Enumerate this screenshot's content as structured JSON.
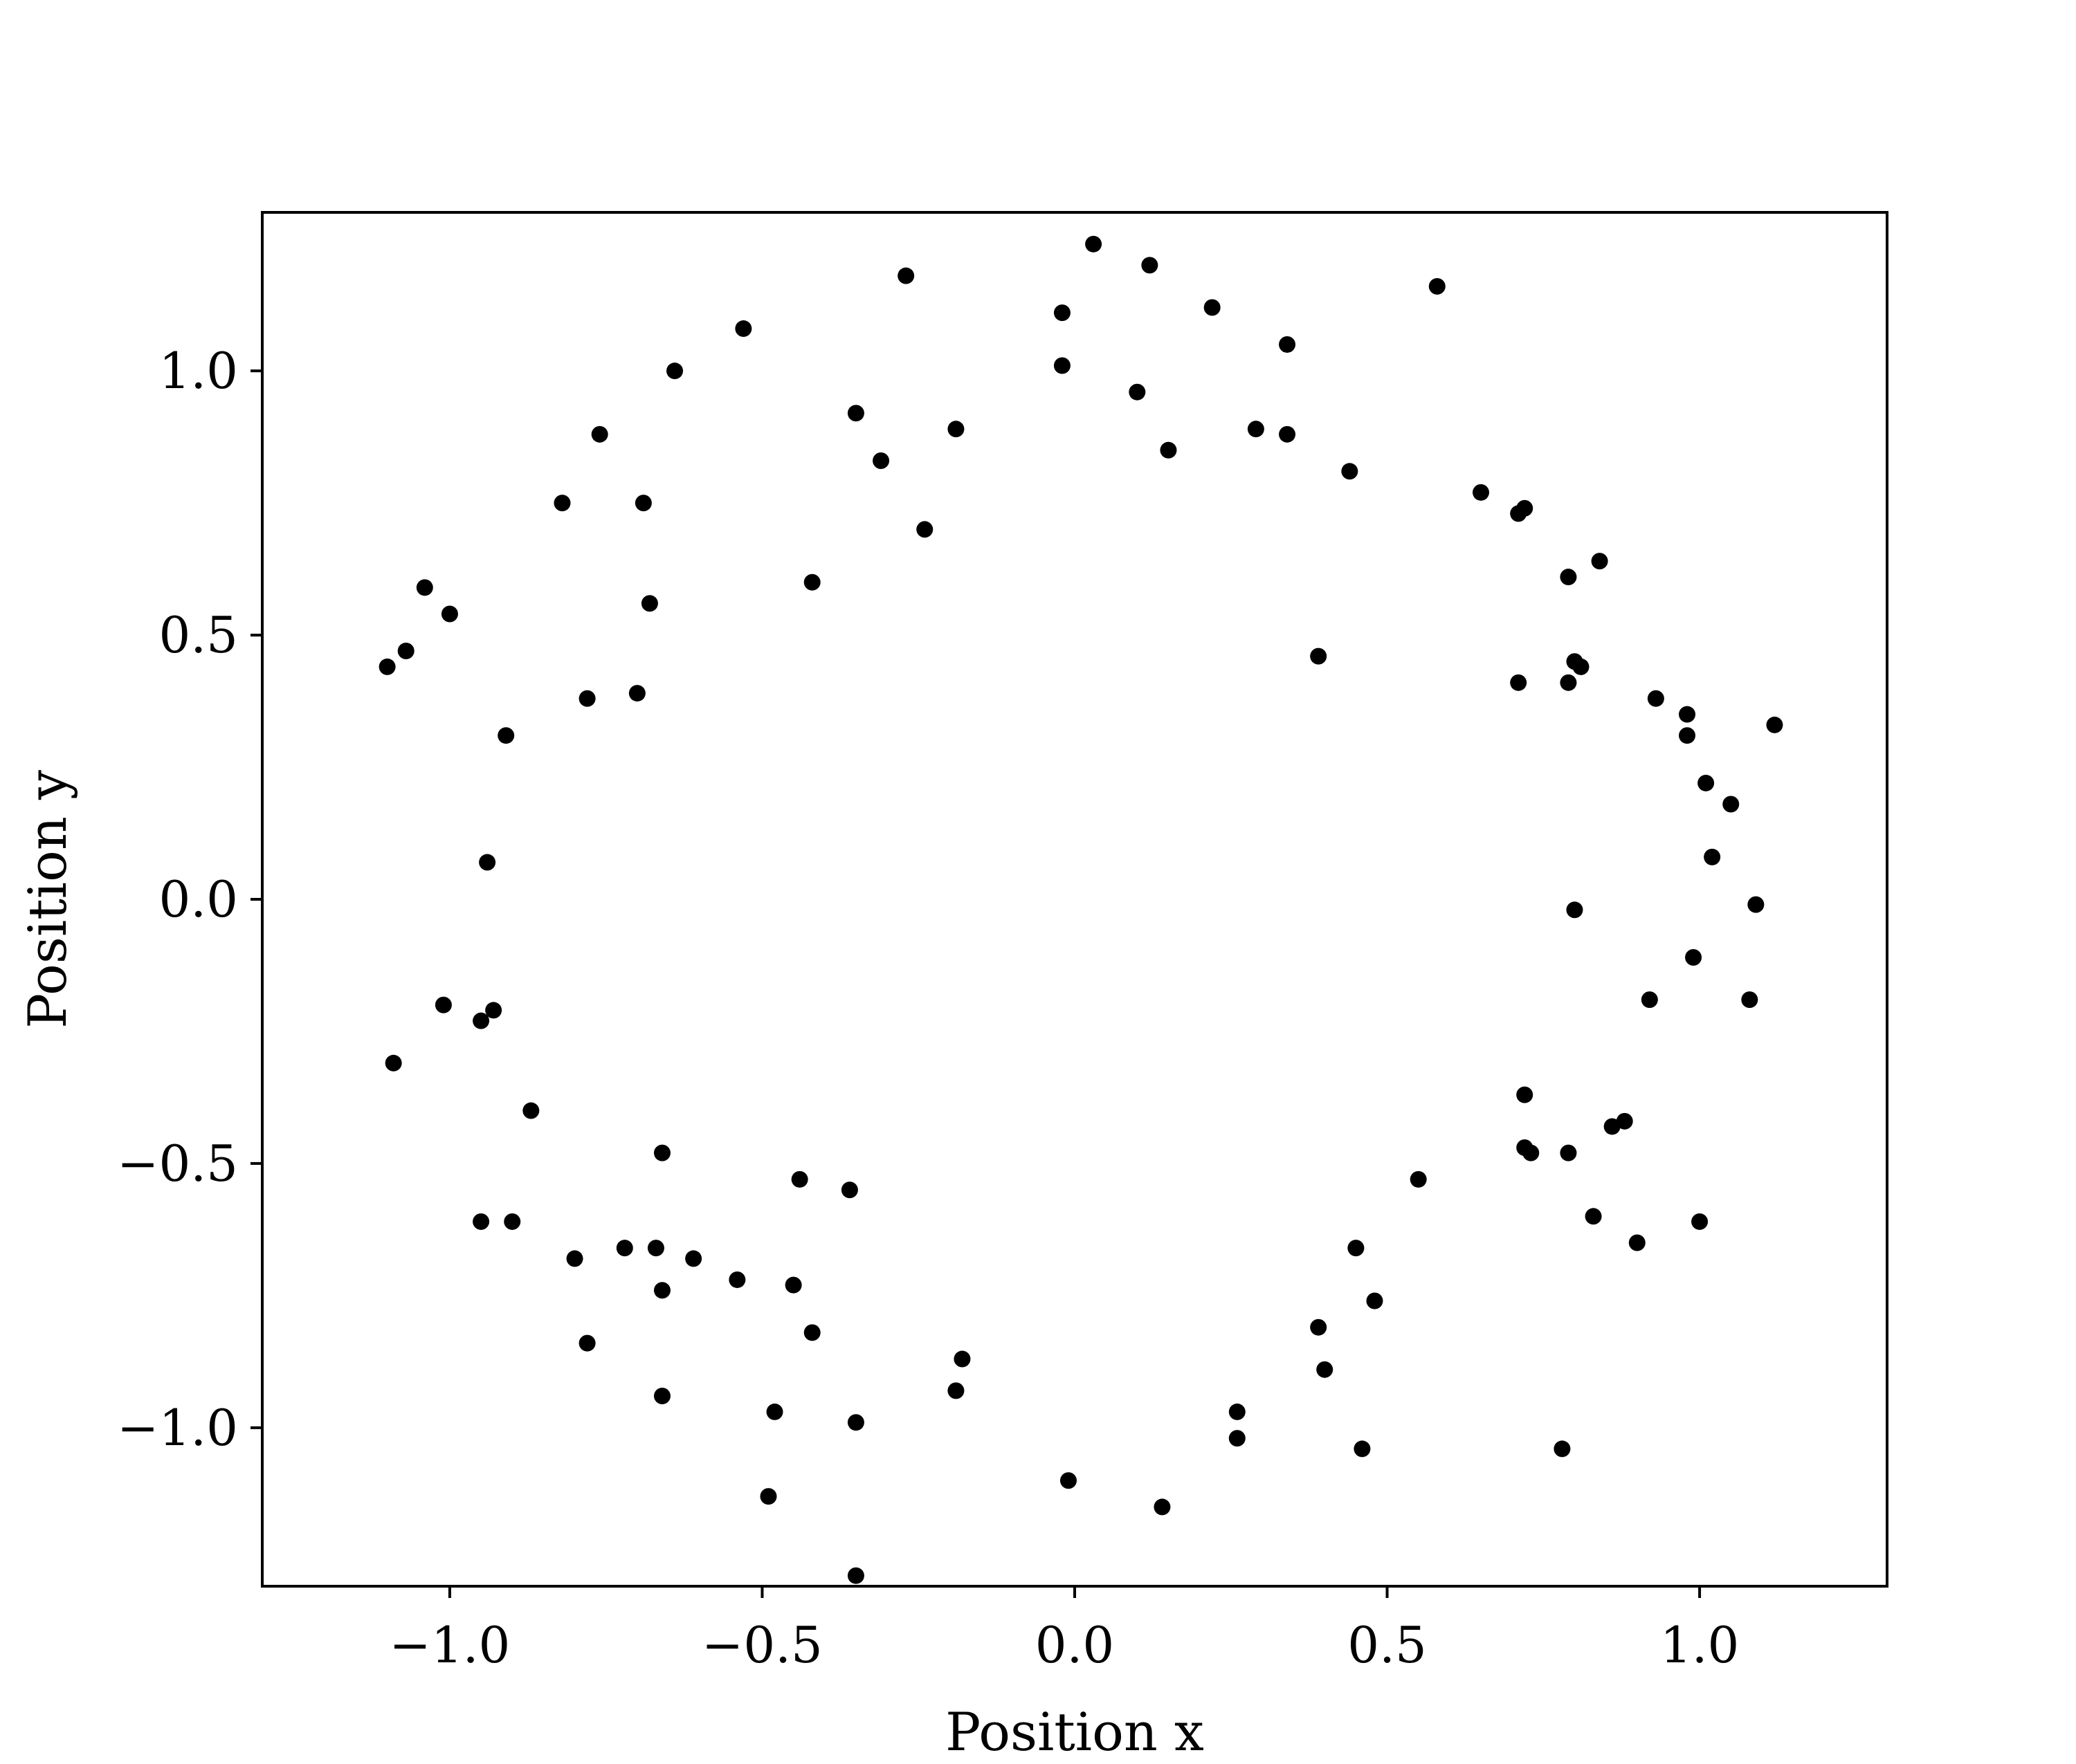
{
  "chart_data": {
    "type": "scatter",
    "title": "",
    "xlabel": "Position x",
    "ylabel": "Position y",
    "xlim": [
      -1.3,
      1.3
    ],
    "ylim": [
      -1.3,
      1.3
    ],
    "grid": false,
    "marker_color": "#000000",
    "xticks": [
      -1.0,
      -0.5,
      0.0,
      0.5,
      1.0
    ],
    "xtick_labels": [
      "−1.0",
      "−0.5",
      "0.0",
      "0.5",
      "1.0"
    ],
    "yticks": [
      -1.0,
      -0.5,
      0.0,
      0.5,
      1.0
    ],
    "ytick_labels": [
      "−1.0",
      "−0.5",
      "0.0",
      "0.5",
      "1.0"
    ],
    "points": [
      [
        0.03,
        1.24
      ],
      [
        0.12,
        1.2
      ],
      [
        -0.27,
        1.18
      ],
      [
        0.58,
        1.16
      ],
      [
        -0.02,
        1.11
      ],
      [
        0.22,
        1.12
      ],
      [
        -0.53,
        1.08
      ],
      [
        0.34,
        1.05
      ],
      [
        -0.02,
        1.01
      ],
      [
        -0.64,
        1.0
      ],
      [
        0.1,
        0.96
      ],
      [
        -0.35,
        0.92
      ],
      [
        -0.76,
        0.88
      ],
      [
        -0.19,
        0.89
      ],
      [
        0.29,
        0.89
      ],
      [
        0.34,
        0.88
      ],
      [
        0.15,
        0.85
      ],
      [
        -0.31,
        0.83
      ],
      [
        0.44,
        0.81
      ],
      [
        -0.82,
        0.75
      ],
      [
        -0.69,
        0.75
      ],
      [
        0.65,
        0.77
      ],
      [
        0.71,
        0.73
      ],
      [
        0.72,
        0.74
      ],
      [
        -0.24,
        0.7
      ],
      [
        0.84,
        0.64
      ],
      [
        0.79,
        0.61
      ],
      [
        -0.42,
        0.6
      ],
      [
        -1.04,
        0.59
      ],
      [
        -0.68,
        0.56
      ],
      [
        -1.0,
        0.54
      ],
      [
        -1.07,
        0.47
      ],
      [
        -1.1,
        0.44
      ],
      [
        0.39,
        0.46
      ],
      [
        0.8,
        0.45
      ],
      [
        0.81,
        0.44
      ],
      [
        0.71,
        0.41
      ],
      [
        0.79,
        0.41
      ],
      [
        -0.78,
        0.38
      ],
      [
        -0.7,
        0.39
      ],
      [
        0.93,
        0.38
      ],
      [
        0.98,
        0.35
      ],
      [
        1.12,
        0.33
      ],
      [
        -0.91,
        0.31
      ],
      [
        0.98,
        0.31
      ],
      [
        1.01,
        0.22
      ],
      [
        1.05,
        0.18
      ],
      [
        1.02,
        0.08
      ],
      [
        -0.94,
        0.07
      ],
      [
        1.09,
        -0.01
      ],
      [
        0.8,
        -0.02
      ],
      [
        0.99,
        -0.11
      ],
      [
        0.92,
        -0.19
      ],
      [
        1.08,
        -0.19
      ],
      [
        -1.01,
        -0.2
      ],
      [
        -0.93,
        -0.21
      ],
      [
        -0.95,
        -0.23
      ],
      [
        -1.09,
        -0.31
      ],
      [
        0.72,
        -0.37
      ],
      [
        -0.87,
        -0.4
      ],
      [
        0.88,
        -0.42
      ],
      [
        0.86,
        -0.43
      ],
      [
        0.72,
        -0.47
      ],
      [
        0.73,
        -0.48
      ],
      [
        -0.66,
        -0.48
      ],
      [
        0.79,
        -0.48
      ],
      [
        -0.44,
        -0.53
      ],
      [
        0.55,
        -0.53
      ],
      [
        -0.36,
        -0.55
      ],
      [
        0.83,
        -0.6
      ],
      [
        -0.95,
        -0.61
      ],
      [
        1.0,
        -0.61
      ],
      [
        -0.9,
        -0.61
      ],
      [
        0.9,
        -0.65
      ],
      [
        -0.72,
        -0.66
      ],
      [
        -0.67,
        -0.66
      ],
      [
        0.45,
        -0.66
      ],
      [
        -0.8,
        -0.68
      ],
      [
        -0.61,
        -0.68
      ],
      [
        -0.54,
        -0.72
      ],
      [
        -0.45,
        -0.73
      ],
      [
        -0.66,
        -0.74
      ],
      [
        0.48,
        -0.76
      ],
      [
        0.39,
        -0.81
      ],
      [
        -0.42,
        -0.82
      ],
      [
        -0.78,
        -0.84
      ],
      [
        -0.18,
        -0.87
      ],
      [
        0.4,
        -0.89
      ],
      [
        -0.19,
        -0.93
      ],
      [
        -0.66,
        -0.94
      ],
      [
        0.26,
        -0.97
      ],
      [
        -0.48,
        -0.97
      ],
      [
        -0.35,
        -0.99
      ],
      [
        0.26,
        -1.02
      ],
      [
        0.46,
        -1.04
      ],
      [
        0.78,
        -1.04
      ],
      [
        -0.01,
        -1.1
      ],
      [
        -0.49,
        -1.13
      ],
      [
        0.14,
        -1.15
      ],
      [
        -0.35,
        -1.28
      ]
    ]
  }
}
